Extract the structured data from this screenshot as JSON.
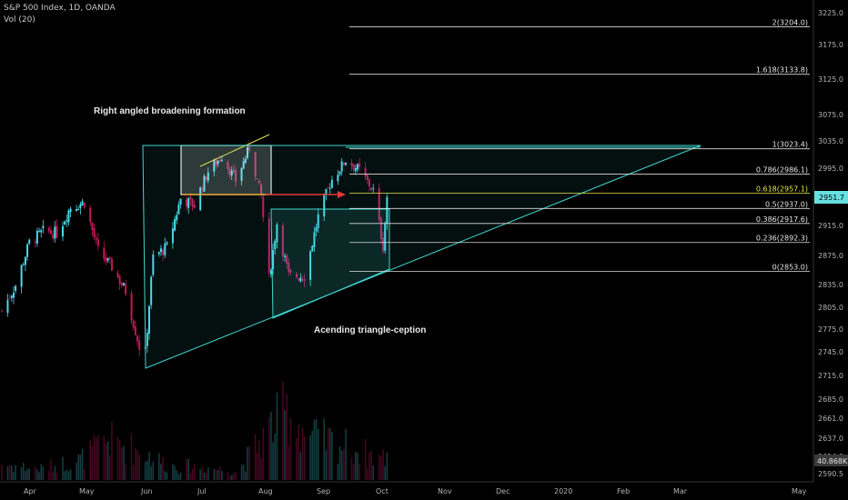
{
  "header": {
    "symbol_line": "S&P 500 Index, 1D, OANDA",
    "volume_line": "Vol (20)"
  },
  "annotations": {
    "broadening": "Right angled broadening formation",
    "triangle": "Acending triangle-ception"
  },
  "colors": {
    "up": "#4dd9e8",
    "down": "#c2185b",
    "fib_line": "#dcdcdc",
    "fib_highlight": "#e6e64a",
    "triangle": "#3fd8d0",
    "arrow": "#e53935",
    "last_price_badge": "#66e0e0"
  },
  "chart_data": {
    "type": "candlestick",
    "y_axis": {
      "ticks": [
        "3225.0",
        "3175.0",
        "3125.0",
        "3075.0",
        "3035.0",
        "2995.0",
        "2955.0",
        "2915.0",
        "2875.0",
        "2835.0",
        "2805.0",
        "2775.0",
        "2745.0",
        "2715.0",
        "2685.0",
        "2661.0",
        "2637.0",
        "2614.0",
        "2590.5"
      ],
      "last_price": "2951.7",
      "last_volume": "40.868K"
    },
    "x_axis": {
      "ticks": [
        "Apr",
        "May",
        "Jun",
        "Jul",
        "Aug",
        "Sep",
        "Oct",
        "Nov",
        "Dec",
        "2020",
        "Feb",
        "Mar",
        "May"
      ]
    },
    "fib_levels": [
      {
        "label": "2(3204.0)",
        "value": 3204.0
      },
      {
        "label": "1.618(3133.8)",
        "value": 3133.8
      },
      {
        "label": "1(3023.4)",
        "value": 3023.4
      },
      {
        "label": "0.786(2986.1)",
        "value": 2986.1
      },
      {
        "label": "0.618(2957.1)",
        "value": 2957.1,
        "highlight": true
      },
      {
        "label": "0.5(2937.0)",
        "value": 2937.0
      },
      {
        "label": "0.386(2917.6)",
        "value": 2917.6
      },
      {
        "label": "0.236(2892.3)",
        "value": 2892.3
      },
      {
        "label": "0(2853.0)",
        "value": 2853.0
      }
    ],
    "price_path": [
      [
        "2019-03-22",
        2800
      ],
      [
        "2019-03-29",
        2834
      ],
      [
        "2019-04-05",
        2892
      ],
      [
        "2019-04-12",
        2907
      ],
      [
        "2019-04-19",
        2905
      ],
      [
        "2019-04-26",
        2939
      ],
      [
        "2019-05-03",
        2945
      ],
      [
        "2019-05-10",
        2881
      ],
      [
        "2019-05-17",
        2859
      ],
      [
        "2019-05-24",
        2826
      ],
      [
        "2019-05-31",
        2752
      ],
      [
        "2019-06-03",
        2744
      ],
      [
        "2019-06-07",
        2873
      ],
      [
        "2019-06-14",
        2886
      ],
      [
        "2019-06-21",
        2950
      ],
      [
        "2019-06-28",
        2941
      ],
      [
        "2019-07-05",
        2990
      ],
      [
        "2019-07-12",
        3013
      ],
      [
        "2019-07-19",
        2976
      ],
      [
        "2019-07-26",
        3025
      ],
      [
        "2019-08-01",
        2953
      ],
      [
        "2019-08-05",
        2844
      ],
      [
        "2019-08-09",
        2918
      ],
      [
        "2019-08-15",
        2847
      ],
      [
        "2019-08-23",
        2847
      ],
      [
        "2019-08-30",
        2926
      ],
      [
        "2019-09-06",
        2978
      ],
      [
        "2019-09-13",
        3007
      ],
      [
        "2019-09-20",
        2992
      ],
      [
        "2019-09-27",
        2961
      ],
      [
        "2019-10-02",
        2887
      ],
      [
        "2019-10-04",
        2952
      ]
    ],
    "volume_envelope": [
      [
        "2019-03-22",
        22
      ],
      [
        "2019-04-10",
        15
      ],
      [
        "2019-05-01",
        28
      ],
      [
        "2019-05-15",
        55
      ],
      [
        "2019-06-01",
        40
      ],
      [
        "2019-06-15",
        20
      ],
      [
        "2019-07-01",
        18
      ],
      [
        "2019-07-20",
        12
      ],
      [
        "2019-08-05",
        70
      ],
      [
        "2019-08-15",
        95
      ],
      [
        "2019-08-25",
        60
      ],
      [
        "2019-09-10",
        50
      ],
      [
        "2019-09-25",
        35
      ],
      [
        "2019-10-04",
        30
      ]
    ]
  }
}
